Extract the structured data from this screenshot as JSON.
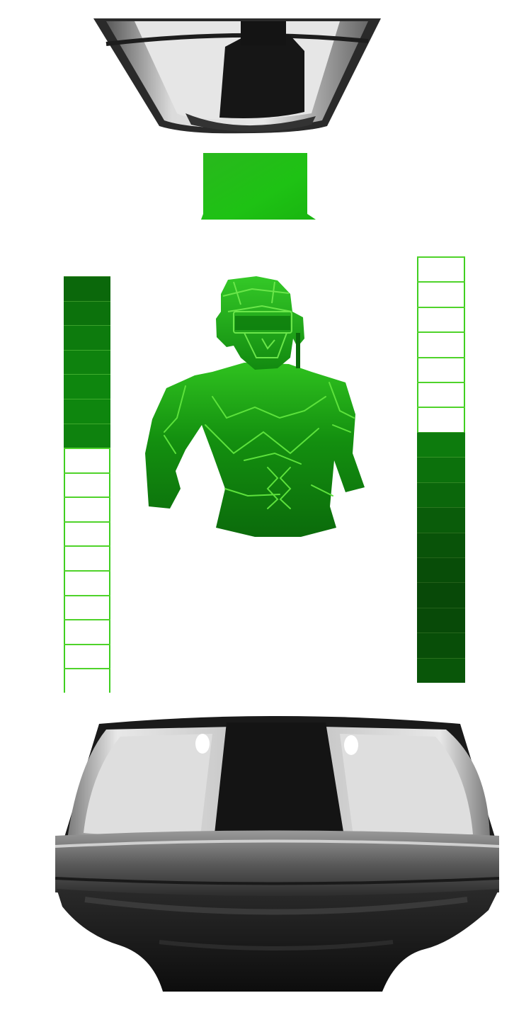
{
  "hud": {
    "left_meter": {
      "segments": 17,
      "filled": 7,
      "fill_from": "top",
      "level": 0.41
    },
    "right_meter": {
      "segments": 17,
      "filled": 10,
      "fill_from": "bottom",
      "level": 0.59
    }
  },
  "colors": {
    "hologram_light": "#3fd127",
    "hologram_mid": "#1fa812",
    "hologram_dark": "#0a6a0a",
    "meter_fill": "#0d7a0d",
    "meter_line": "#4fd32a",
    "projector_dark": "#151515",
    "projector_mid": "#7a7a7a",
    "projector_light": "#e0e0e0"
  },
  "icons": {
    "top": "ceiling-projector-icon",
    "screen": "green-status-screen-icon",
    "figure": "soldier-hologram-icon",
    "bottom": "floor-projector-base-icon"
  }
}
